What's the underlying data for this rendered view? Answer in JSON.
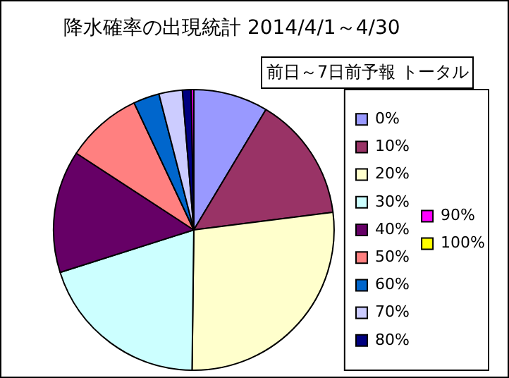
{
  "chart_data": {
    "type": "pie",
    "title": "降水確率の出現統計 2014/4/1～4/30",
    "subtitle": "前日～7日前予報 トータル",
    "categories": [
      "0%",
      "10%",
      "20%",
      "30%",
      "40%",
      "50%",
      "60%",
      "70%",
      "80%",
      "90%",
      "100%"
    ],
    "values": [
      8.6,
      14.4,
      27.2,
      19.9,
      14.1,
      8.8,
      3.0,
      2.7,
      1.0,
      0.3,
      0
    ],
    "colors": [
      "#9999ff",
      "#993366",
      "#ffffcc",
      "#ccffff",
      "#660066",
      "#ff8080",
      "#0066cc",
      "#ccccff",
      "#000080",
      "#ff00ff",
      "#ffff00"
    ],
    "legend": "right"
  }
}
